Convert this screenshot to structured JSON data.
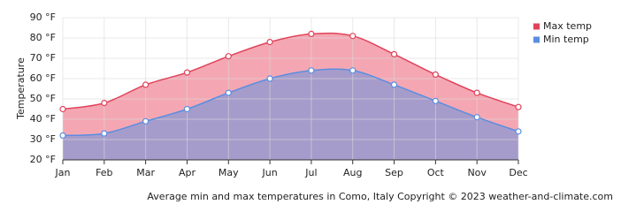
{
  "chart_data": {
    "type": "line",
    "y_label": "Temperature",
    "footer": "Average min and max temperatures in Como, Italy   Copyright © 2023  weather-and-climate.com",
    "categories": [
      "Jan",
      "Feb",
      "Mar",
      "Apr",
      "May",
      "Jun",
      "Jul",
      "Aug",
      "Sep",
      "Oct",
      "Nov",
      "Dec"
    ],
    "series": [
      {
        "name": "Max temp",
        "color": "#e0435a",
        "fill": "#f4a7b3",
        "values": [
          45,
          48,
          57,
          63,
          71,
          78,
          82,
          81,
          72,
          62,
          53,
          46
        ]
      },
      {
        "name": "Min temp",
        "color": "#5b8de0",
        "fill": "#a69ccb",
        "values": [
          32,
          33,
          39,
          45,
          53,
          60,
          64,
          64,
          57,
          49,
          41,
          34
        ]
      }
    ],
    "ylim": [
      20,
      90
    ],
    "yticks": [
      {
        "value": 20,
        "label": "20 °F"
      },
      {
        "value": 30,
        "label": "30 °F"
      },
      {
        "value": 40,
        "label": "40 °F"
      },
      {
        "value": 50,
        "label": "50 °F"
      },
      {
        "value": 60,
        "label": "60 °F"
      },
      {
        "value": 70,
        "label": "70 °F"
      },
      {
        "value": 80,
        "label": "80 °F"
      },
      {
        "value": 90,
        "label": "90 °F"
      }
    ],
    "grid": true,
    "legend": "right"
  }
}
